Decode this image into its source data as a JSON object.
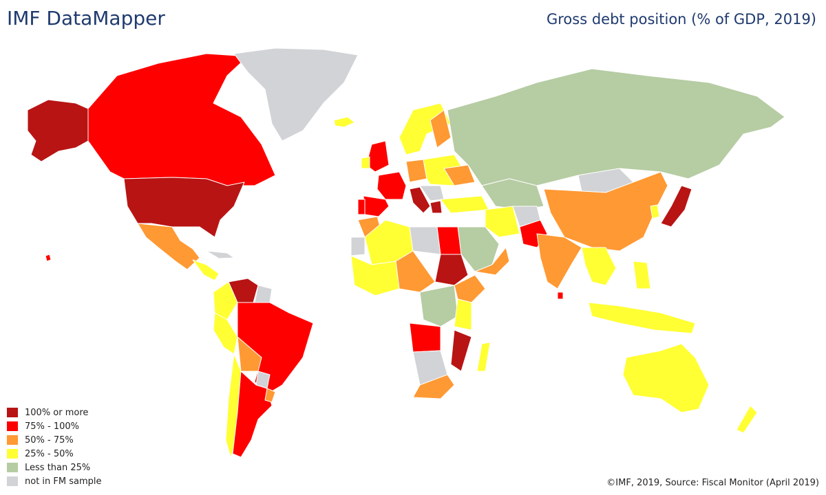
{
  "header": {
    "title": "IMF DataMapper"
  },
  "map": {
    "title": "Gross debt position (% of GDP, 2019)"
  },
  "legend": {
    "items": [
      {
        "label": "100% or more",
        "color": "#b81414"
      },
      {
        "label": "75% - 100%",
        "color": "#ff0000"
      },
      {
        "label": "50% - 75%",
        "color": "#ff9933"
      },
      {
        "label": "25% - 50%",
        "color": "#ffff33"
      },
      {
        "label": "Less than 25%",
        "color": "#b6cca3"
      },
      {
        "label": "not in FM sample",
        "color": "#d1d3d6"
      }
    ]
  },
  "footer": {
    "source": "©IMF, 2019, Source: Fiscal Monitor (April 2019)"
  }
}
